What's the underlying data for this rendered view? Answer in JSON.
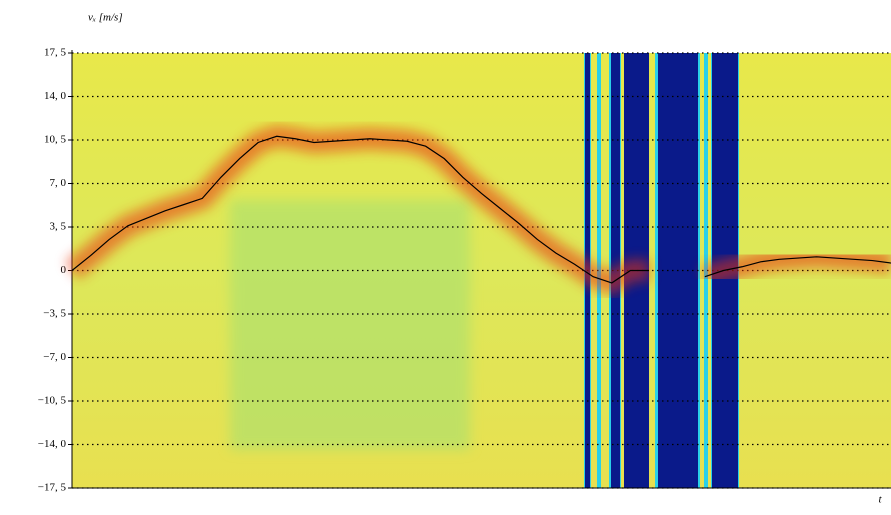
{
  "chart_data": {
    "type": "line",
    "y_label": "vₓ [m/s]",
    "x_label": "t",
    "categories": [
      null,
      null,
      null,
      null,
      null,
      null,
      null,
      null,
      null,
      null,
      null,
      null,
      null,
      null,
      null,
      null,
      null,
      null,
      null,
      null,
      null,
      null,
      null,
      null,
      null,
      null,
      null,
      null,
      null,
      null,
      null,
      null,
      null,
      null,
      null,
      null,
      null,
      null,
      null,
      null,
      null,
      null,
      null,
      null,
      null
    ],
    "series": [
      {
        "color": "#000000",
        "values": [
          0,
          1.2,
          2.5,
          3.6,
          4.2,
          4.8,
          5.3,
          5.8,
          7.5,
          9.0,
          10.3,
          10.8,
          10.6,
          10.3,
          10.4,
          10.5,
          10.6,
          10.5,
          10.4,
          10.0,
          9.0,
          7.5,
          6.2,
          5.0,
          3.8,
          2.5,
          1.4,
          0.5,
          -0.5,
          -1.0,
          0,
          0,
          null,
          null,
          -0.5,
          0,
          0.3,
          0.7,
          0.9,
          1.0,
          1.1,
          1.0,
          0.9,
          0.8,
          0.6
        ]
      }
    ],
    "ylim": [
      -17.5,
      17.5
    ],
    "yticks": [
      {
        "value": 17.5,
        "label": "17, 5"
      },
      {
        "value": 14,
        "label": "14, 0"
      },
      {
        "value": 10.5,
        "label": "10, 5"
      },
      {
        "value": 7,
        "label": "7, 0"
      },
      {
        "value": 3.5,
        "label": "3, 5"
      },
      0,
      {
        "value": -3.5,
        "label": "−3, 5"
      },
      {
        "value": -7,
        "label": "−7, 0"
      },
      {
        "value": -10.5,
        "label": "−10, 5"
      },
      {
        "value": -14,
        "label": "−14, 0"
      },
      {
        "value": -17.5,
        "label": "−17, 5"
      }
    ],
    "grid": true
  }
}
